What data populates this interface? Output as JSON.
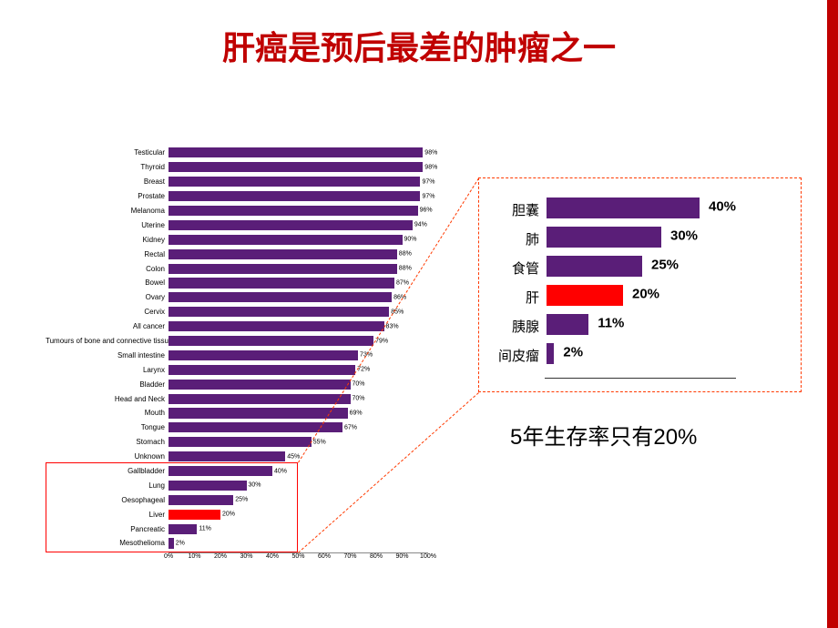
{
  "title": {
    "text": "肝癌是预后最差的肿瘤之一",
    "color": "#c00000",
    "fontsize": 36
  },
  "accent_bar_color": "#c00000",
  "main_chart": {
    "type": "bar",
    "bar_color": "#5a1e78",
    "highlight_color": "#ff0000",
    "background_color": "#ffffff",
    "label_fontsize": 8,
    "value_fontsize": 7,
    "xlim": [
      0,
      100
    ],
    "xtick_step": 10,
    "bars": [
      {
        "label": "Testicular",
        "value": 98,
        "value_label": "98%"
      },
      {
        "label": "Thyroid",
        "value": 98,
        "value_label": "98%"
      },
      {
        "label": "Breast",
        "value": 97,
        "value_label": "97%"
      },
      {
        "label": "Prostate",
        "value": 97,
        "value_label": "97%"
      },
      {
        "label": "Melanoma",
        "value": 96,
        "value_label": "96%"
      },
      {
        "label": "Uterine",
        "value": 94,
        "value_label": "94%"
      },
      {
        "label": "Kidney",
        "value": 90,
        "value_label": "90%"
      },
      {
        "label": "Rectal",
        "value": 88,
        "value_label": "88%"
      },
      {
        "label": "Colon",
        "value": 88,
        "value_label": "88%"
      },
      {
        "label": "Bowel",
        "value": 87,
        "value_label": "87%"
      },
      {
        "label": "Ovary",
        "value": 86,
        "value_label": "86%"
      },
      {
        "label": "Cervix",
        "value": 85,
        "value_label": "85%"
      },
      {
        "label": "All cancer",
        "value": 83,
        "value_label": "83%"
      },
      {
        "label": "Tumours of bone and connective tissue",
        "value": 79,
        "value_label": "79%"
      },
      {
        "label": "Small intestine",
        "value": 73,
        "value_label": "73%"
      },
      {
        "label": "Larynx",
        "value": 72,
        "value_label": "72%"
      },
      {
        "label": "Bladder",
        "value": 70,
        "value_label": "70%"
      },
      {
        "label": "Head and Neck",
        "value": 70,
        "value_label": "70%"
      },
      {
        "label": "Mouth",
        "value": 69,
        "value_label": "69%"
      },
      {
        "label": "Tongue",
        "value": 67,
        "value_label": "67%"
      },
      {
        "label": "Stomach",
        "value": 55,
        "value_label": "55%"
      },
      {
        "label": "Unknown",
        "value": 45,
        "value_label": "45%"
      },
      {
        "label": "Gallbladder",
        "value": 40,
        "value_label": "40%"
      },
      {
        "label": "Lung",
        "value": 30,
        "value_label": "30%"
      },
      {
        "label": "Oesophageal",
        "value": 25,
        "value_label": "25%"
      },
      {
        "label": "Liver",
        "value": 20,
        "value_label": "20%",
        "highlight": true
      },
      {
        "label": "Pancreatic",
        "value": 11,
        "value_label": "11%"
      },
      {
        "label": "Mesothelioma",
        "value": 2,
        "value_label": "2%"
      }
    ],
    "highlight_box": {
      "from_index": 22,
      "to_index": 27
    },
    "xticks": [
      "0%",
      "10%",
      "20%",
      "30%",
      "40%",
      "50%",
      "60%",
      "70%",
      "80%",
      "90%",
      "100%"
    ]
  },
  "detail_chart": {
    "type": "bar",
    "bar_color": "#5a1e78",
    "highlight_color": "#ff0000",
    "border_color": "#ff3a00",
    "label_fontsize": 15,
    "value_fontsize": 15,
    "xlim": [
      0,
      50
    ],
    "bars": [
      {
        "label": "胆囊",
        "value": 40,
        "value_label": "40%"
      },
      {
        "label": "肺",
        "value": 30,
        "value_label": "30%"
      },
      {
        "label": "食管",
        "value": 25,
        "value_label": "25%"
      },
      {
        "label": "肝",
        "value": 20,
        "value_label": "20%",
        "highlight": true
      },
      {
        "label": "胰腺",
        "value": 11,
        "value_label": "11%"
      },
      {
        "label": "间皮瘤",
        "value": 2,
        "value_label": "2%"
      }
    ]
  },
  "caption": {
    "text": "5年生存率只有20%",
    "fontsize": 24,
    "color": "#000000"
  }
}
